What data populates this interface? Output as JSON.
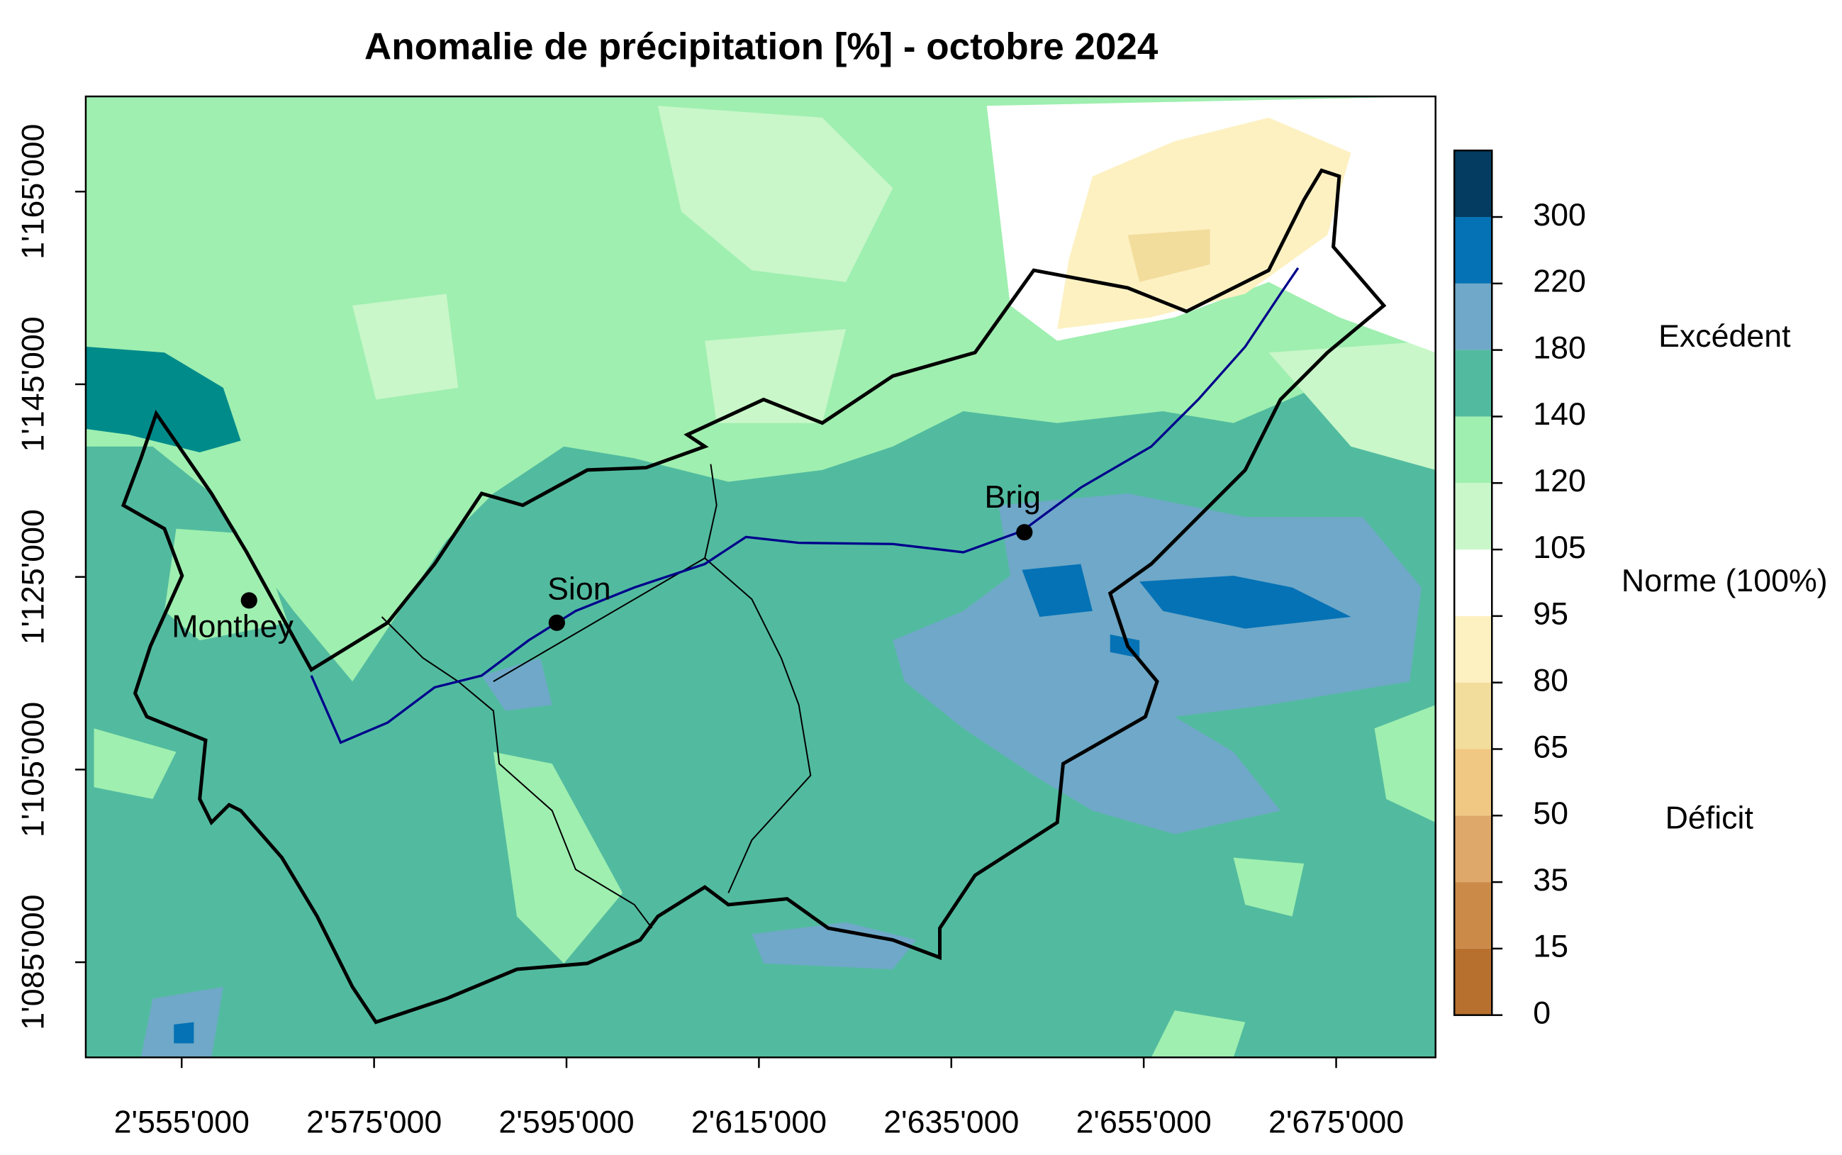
{
  "title": "Anomalie de précipitation [%] - octobre 2024",
  "map": {
    "xlim": [
      2545030,
      2685330
    ],
    "ylim": [
      1075120,
      1174880
    ],
    "xticks": [
      {
        "value": 2555000,
        "label": "2'555'000"
      },
      {
        "value": 2575000,
        "label": "2'575'000"
      },
      {
        "value": 2595000,
        "label": "2'595'000"
      },
      {
        "value": 2615000,
        "label": "2'615'000"
      },
      {
        "value": 2635000,
        "label": "2'635'000"
      },
      {
        "value": 2655000,
        "label": "2'655'000"
      },
      {
        "value": 2675000,
        "label": "2'675'000"
      }
    ],
    "yticks": [
      {
        "value": 1085000,
        "label": "1'085'000"
      },
      {
        "value": 1105000,
        "label": "1'105'000"
      },
      {
        "value": 1125000,
        "label": "1'125'000"
      },
      {
        "value": 1145000,
        "label": "1'145'000"
      },
      {
        "value": 1165000,
        "label": "1'165'000"
      }
    ],
    "places": [
      "Monthey",
      "Sion",
      "Brig"
    ]
  },
  "colorbar": {
    "ticks": [
      0,
      15,
      35,
      50,
      65,
      80,
      95,
      105,
      120,
      140,
      180,
      220,
      300
    ],
    "colors": [
      "#b8702f",
      "#cc8a48",
      "#dea86a",
      "#f0c783",
      "#f3dd9c",
      "#fdf1c2",
      "#ffffff",
      "#c9f7c9",
      "#9fefb0",
      "#52bb9f",
      "#6fa8c8",
      "#0572b5",
      "#033c60"
    ]
  },
  "annotations": {
    "excess": "Excédent",
    "normal": "Norme (100%)",
    "deficit": "Déficit"
  }
}
